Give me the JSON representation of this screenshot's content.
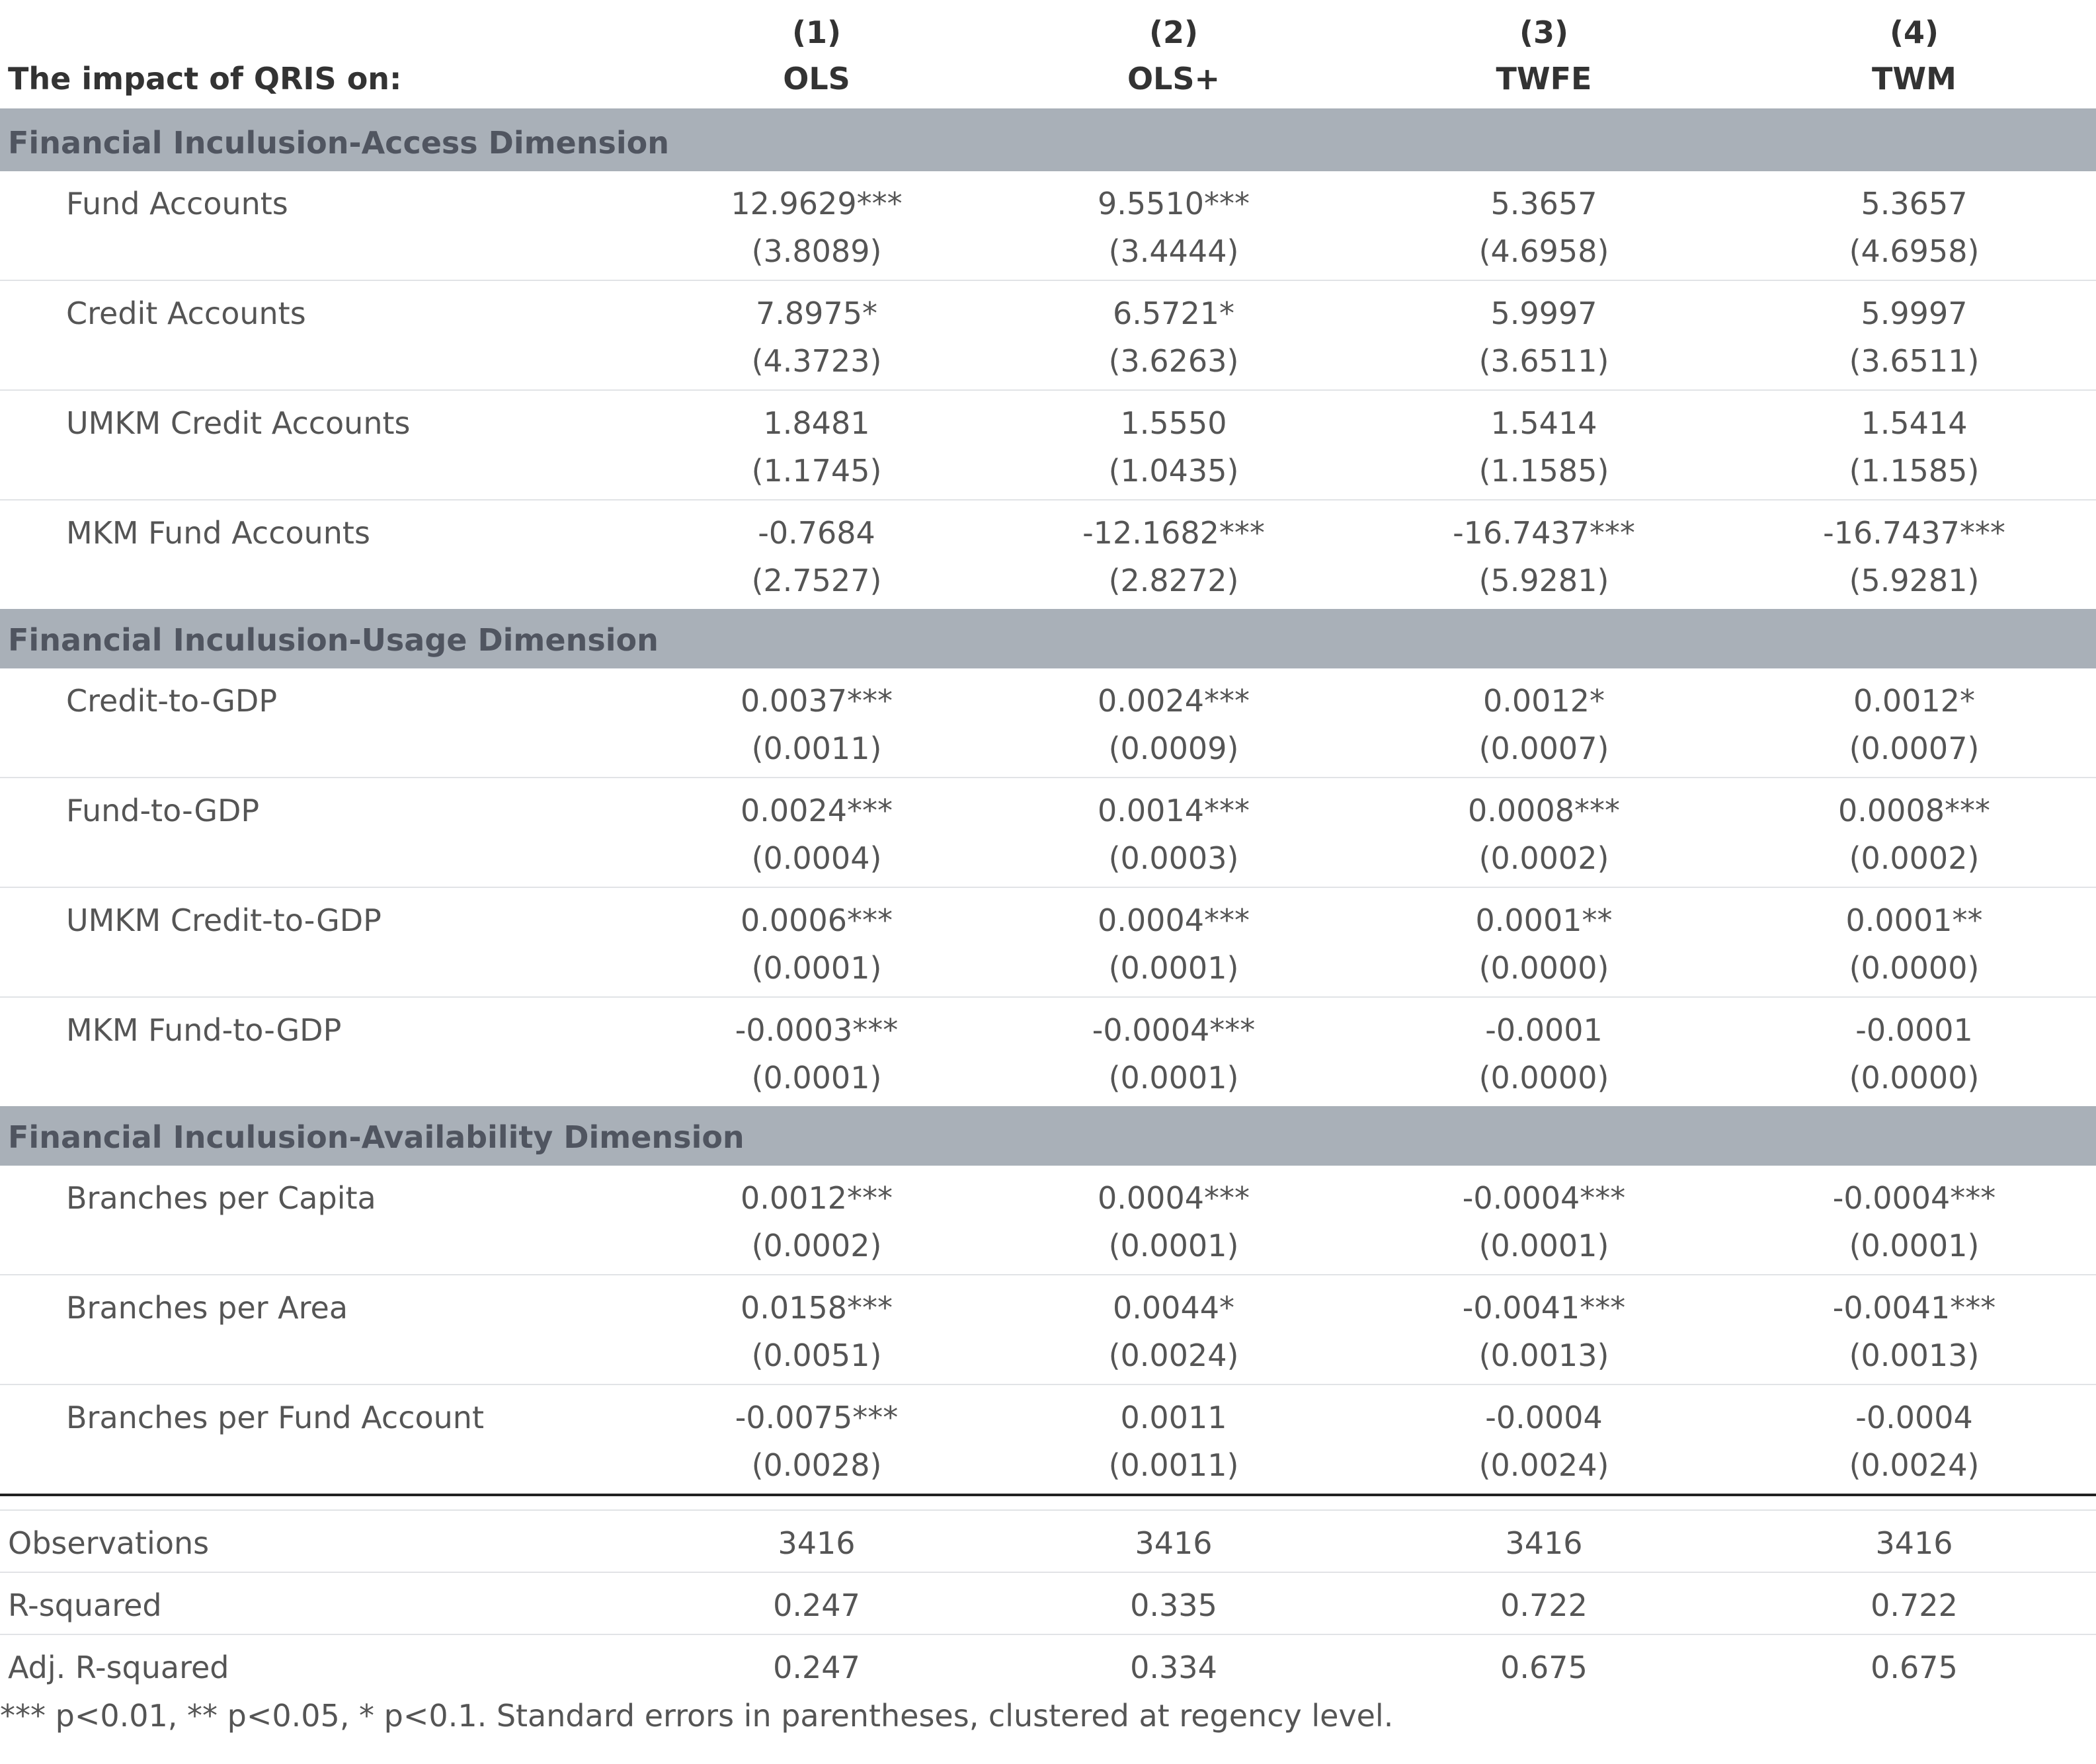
{
  "header": {
    "label": "The impact of QRIS on:",
    "columns": [
      {
        "num": "(1)",
        "name": "OLS"
      },
      {
        "num": "(2)",
        "name": "OLS+"
      },
      {
        "num": "(3)",
        "name": "TWFE"
      },
      {
        "num": "(4)",
        "name": "TWM"
      }
    ]
  },
  "sections": [
    {
      "title": "Financial Inculusion-Access Dimension",
      "rows": [
        {
          "label": "Fund Accounts",
          "coef": [
            "12.9629***",
            "9.5510***",
            "5.3657",
            "5.3657"
          ],
          "se": [
            "(3.8089)",
            "(3.4444)",
            "(4.6958)",
            "(4.6958)"
          ]
        },
        {
          "label": "Credit Accounts",
          "coef": [
            "7.8975*",
            "6.5721*",
            "5.9997",
            "5.9997"
          ],
          "se": [
            "(4.3723)",
            "(3.6263)",
            "(3.6511)",
            "(3.6511)"
          ]
        },
        {
          "label": "UMKM Credit Accounts",
          "coef": [
            "1.8481",
            "1.5550",
            "1.5414",
            "1.5414"
          ],
          "se": [
            "(1.1745)",
            "(1.0435)",
            "(1.1585)",
            "(1.1585)"
          ]
        },
        {
          "label": "MKM Fund Accounts",
          "coef": [
            "-0.7684",
            "-12.1682***",
            "-16.7437***",
            "-16.7437***"
          ],
          "se": [
            "(2.7527)",
            "(2.8272)",
            "(5.9281)",
            "(5.9281)"
          ]
        }
      ]
    },
    {
      "title": "Financial Inculusion-Usage Dimension",
      "rows": [
        {
          "label": "Credit-to-GDP",
          "coef": [
            "0.0037***",
            "0.0024***",
            "0.0012*",
            "0.0012*"
          ],
          "se": [
            "(0.0011)",
            "(0.0009)",
            "(0.0007)",
            "(0.0007)"
          ]
        },
        {
          "label": "Fund-to-GDP",
          "coef": [
            "0.0024***",
            "0.0014***",
            "0.0008***",
            "0.0008***"
          ],
          "se": [
            "(0.0004)",
            "(0.0003)",
            "(0.0002)",
            "(0.0002)"
          ]
        },
        {
          "label": "UMKM Credit-to-GDP",
          "coef": [
            "0.0006***",
            "0.0004***",
            "0.0001**",
            "0.0001**"
          ],
          "se": [
            "(0.0001)",
            "(0.0001)",
            "(0.0000)",
            "(0.0000)"
          ]
        },
        {
          "label": "MKM Fund-to-GDP",
          "coef": [
            "-0.0003***",
            "-0.0004***",
            "-0.0001",
            "-0.0001"
          ],
          "se": [
            "(0.0001)",
            "(0.0001)",
            "(0.0000)",
            "(0.0000)"
          ]
        }
      ]
    },
    {
      "title": "Financial Inculusion-Availability Dimension",
      "rows": [
        {
          "label": "Branches per Capita",
          "coef": [
            "0.0012***",
            "0.0004***",
            "-0.0004***",
            "-0.0004***"
          ],
          "se": [
            "(0.0002)",
            "(0.0001)",
            "(0.0001)",
            "(0.0001)"
          ]
        },
        {
          "label": "Branches per Area",
          "coef": [
            "0.0158***",
            "0.0044*",
            "-0.0041***",
            "-0.0041***"
          ],
          "se": [
            "(0.0051)",
            "(0.0024)",
            "(0.0013)",
            "(0.0013)"
          ]
        },
        {
          "label": "Branches per Fund Account",
          "coef": [
            "-0.0075***",
            "0.0011",
            "-0.0004",
            "-0.0004"
          ],
          "se": [
            "(0.0028)",
            "(0.0011)",
            "(0.0024)",
            "(0.0024)"
          ]
        }
      ]
    }
  ],
  "stats": [
    {
      "label": "Observations",
      "values": [
        "3416",
        "3416",
        "3416",
        "3416"
      ]
    },
    {
      "label": "R-squared",
      "values": [
        "0.247",
        "0.335",
        "0.722",
        "0.722"
      ]
    },
    {
      "label": "Adj. R-squared",
      "values": [
        "0.247",
        "0.334",
        "0.675",
        "0.675"
      ]
    }
  ],
  "note": "*** p<0.01, ** p<0.05, * p<0.1. Standard errors in parentheses, clustered at regency level."
}
